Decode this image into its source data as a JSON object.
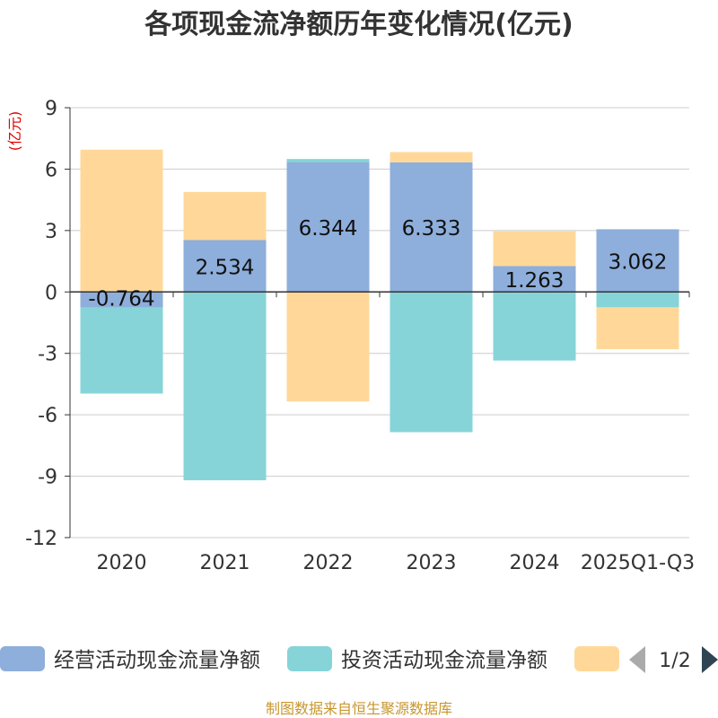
{
  "chart_data": {
    "type": "bar",
    "stacked": true,
    "title": "各项现金流净额历年变化情况(亿元)",
    "ylabel": "(亿元)",
    "categories": [
      "2020",
      "2021",
      "2022",
      "2023",
      "2024",
      "2025Q1-Q3"
    ],
    "ylim": [
      -12,
      9
    ],
    "yticks": [
      9,
      6,
      3,
      0,
      -3,
      -6,
      -9,
      -12
    ],
    "series": [
      {
        "name": "经营活动现金流量净额",
        "color": "#8EAEDB",
        "values": [
          -0.764,
          2.534,
          6.344,
          6.333,
          1.263,
          3.062
        ],
        "show_labels": true
      },
      {
        "name": "投资活动现金流量净额",
        "color": "#86D4D8",
        "values": [
          -4.2,
          -9.2,
          0.15,
          -6.85,
          -3.35,
          -0.75
        ],
        "show_labels": false
      },
      {
        "name": "",
        "color": "#FFD899",
        "values": [
          6.95,
          2.35,
          -5.35,
          0.5,
          1.7,
          -2.05
        ],
        "show_labels": false
      }
    ],
    "data_labels": [
      "-0.764",
      "2.534",
      "6.344",
      "6.333",
      "1.263",
      "3.062"
    ],
    "legend": {
      "position": "bottom",
      "page": "1/2"
    },
    "source": "制图数据来自恒生聚源数据库",
    "colors": {
      "axis": "#333333",
      "grid": "#CCCCCC",
      "unit": "#E00000",
      "source": "#C8962E",
      "arrow_disabled": "#AAAAAA",
      "arrow_active": "#2F4554"
    }
  }
}
